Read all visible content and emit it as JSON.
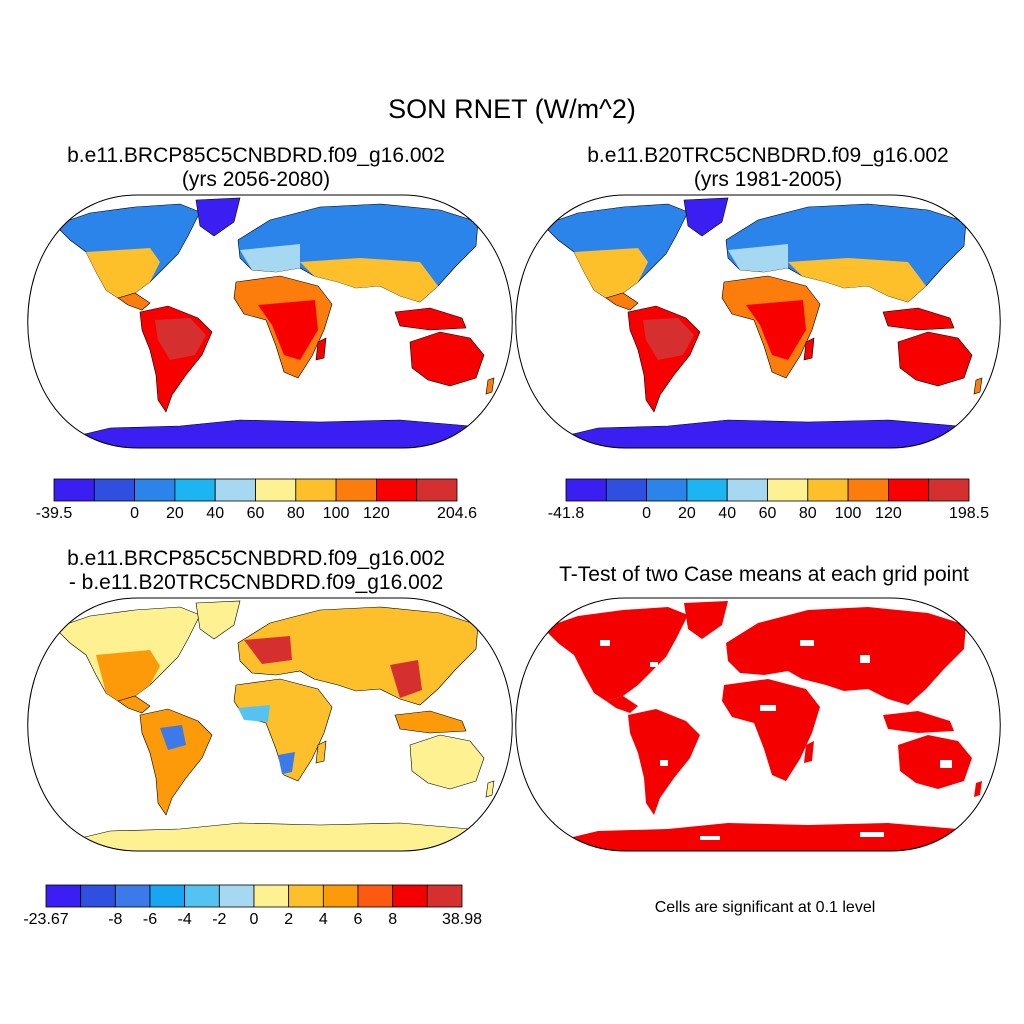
{
  "title": "SON RNET (W/m^2)",
  "panels": [
    {
      "id": "case1",
      "title_line1": "b.e11.BRCP85C5CNBDRD.f09_g16.002",
      "title_line2": "(yrs 2056-2080)",
      "colorbar": {
        "colors": [
          "#3a1ef2",
          "#2f4fe0",
          "#2b84ea",
          "#1bb6f2",
          "#a6d8f2",
          "#fef192",
          "#fdc02a",
          "#fd7d0c",
          "#f90000",
          "#d62f2f"
        ],
        "labels": [
          "-39.5",
          "0",
          "20",
          "40",
          "60",
          "80",
          "100",
          "120",
          "204.6"
        ]
      }
    },
    {
      "id": "case2",
      "title_line1": "b.e11.B20TRC5CNBDRD.f09_g16.002",
      "title_line2": "(yrs 1981-2005)",
      "colorbar": {
        "colors": [
          "#3a1ef2",
          "#2f4fe0",
          "#2b84ea",
          "#1bb6f2",
          "#a6d8f2",
          "#fef192",
          "#fdc02a",
          "#fd7d0c",
          "#f90000",
          "#d62f2f"
        ],
        "labels": [
          "-41.8",
          "0",
          "20",
          "40",
          "60",
          "80",
          "100",
          "120",
          "198.5"
        ]
      }
    },
    {
      "id": "diff",
      "title_line1": "b.e11.BRCP85C5CNBDRD.f09_g16.002",
      "title_line2": "- b.e11.B20TRC5CNBDRD.f09_g16.002",
      "colorbar": {
        "colors": [
          "#3a1ef2",
          "#2f4fe0",
          "#3b7ae8",
          "#18a6f2",
          "#55c3f2",
          "#a6d8f2",
          "#fef192",
          "#fdc02a",
          "#fd9a0a",
          "#fd5a10",
          "#f50000",
          "#d62f2f"
        ],
        "labels": [
          "-23.67",
          "-8",
          "-6",
          "-4",
          "-2",
          "0",
          "2",
          "4",
          "6",
          "8",
          "38.98"
        ]
      }
    },
    {
      "id": "ttest",
      "title_line1": "T-Test of two Case means at each grid point",
      "note": "Cells are significant at 0.1 level",
      "significant_color": "#f40000"
    }
  ]
}
